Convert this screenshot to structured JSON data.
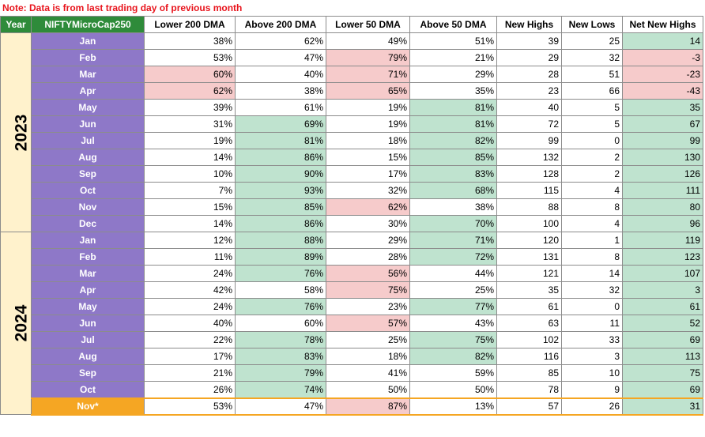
{
  "note": "Note: Data is from last trading day of previous month",
  "headers": [
    "Year",
    "NIFTYMicroCap250",
    "Lower 200 DMA",
    "Above 200 DMA",
    "Lower 50 DMA",
    "Above 50 DMA",
    "New Highs",
    "New Lows",
    "Net New Highs"
  ],
  "colors": {
    "header_green": "#2e8b3a",
    "month_purple": "#8e78c8",
    "year_cream": "#fff2cc",
    "positive_green": "#bfe3cf",
    "negative_red": "#f6cbcb",
    "highlight_orange": "#f5a623",
    "note_red": "#e8141c"
  },
  "years": [
    {
      "label": "2023",
      "rows": [
        {
          "month": "Jan",
          "lower200": "38%",
          "above200": "62%",
          "lower50": "49%",
          "above50": "51%",
          "highs": "39",
          "lows": "25",
          "net": "14",
          "hl": {
            "above200": "",
            "lower50": "",
            "above50": "",
            "net": "g"
          }
        },
        {
          "month": "Feb",
          "lower200": "53%",
          "above200": "47%",
          "lower50": "79%",
          "above50": "21%",
          "highs": "29",
          "lows": "32",
          "net": "-3",
          "hl": {
            "lower50": "r",
            "net": "r"
          }
        },
        {
          "month": "Mar",
          "lower200": "60%",
          "above200": "40%",
          "lower50": "71%",
          "above50": "29%",
          "highs": "28",
          "lows": "51",
          "net": "-23",
          "hl": {
            "lower200": "r",
            "lower50": "r",
            "net": "r"
          }
        },
        {
          "month": "Apr",
          "lower200": "62%",
          "above200": "38%",
          "lower50": "65%",
          "above50": "35%",
          "highs": "23",
          "lows": "66",
          "net": "-43",
          "hl": {
            "lower200": "r",
            "lower50": "r",
            "net": "r"
          }
        },
        {
          "month": "May",
          "lower200": "39%",
          "above200": "61%",
          "lower50": "19%",
          "above50": "81%",
          "highs": "40",
          "lows": "5",
          "net": "35",
          "hl": {
            "above50": "g",
            "net": "g"
          }
        },
        {
          "month": "Jun",
          "lower200": "31%",
          "above200": "69%",
          "lower50": "19%",
          "above50": "81%",
          "highs": "72",
          "lows": "5",
          "net": "67",
          "hl": {
            "above200": "g",
            "above50": "g",
            "net": "g"
          }
        },
        {
          "month": "Jul",
          "lower200": "19%",
          "above200": "81%",
          "lower50": "18%",
          "above50": "82%",
          "highs": "99",
          "lows": "0",
          "net": "99",
          "hl": {
            "above200": "g",
            "above50": "g",
            "net": "g"
          }
        },
        {
          "month": "Aug",
          "lower200": "14%",
          "above200": "86%",
          "lower50": "15%",
          "above50": "85%",
          "highs": "132",
          "lows": "2",
          "net": "130",
          "hl": {
            "above200": "g",
            "above50": "g",
            "net": "g"
          }
        },
        {
          "month": "Sep",
          "lower200": "10%",
          "above200": "90%",
          "lower50": "17%",
          "above50": "83%",
          "highs": "128",
          "lows": "2",
          "net": "126",
          "hl": {
            "above200": "g",
            "above50": "g",
            "net": "g"
          }
        },
        {
          "month": "Oct",
          "lower200": "7%",
          "above200": "93%",
          "lower50": "32%",
          "above50": "68%",
          "highs": "115",
          "lows": "4",
          "net": "111",
          "hl": {
            "above200": "g",
            "above50": "g",
            "net": "g"
          }
        },
        {
          "month": "Nov",
          "lower200": "15%",
          "above200": "85%",
          "lower50": "62%",
          "above50": "38%",
          "highs": "88",
          "lows": "8",
          "net": "80",
          "hl": {
            "above200": "g",
            "lower50": "r",
            "net": "g"
          }
        },
        {
          "month": "Dec",
          "lower200": "14%",
          "above200": "86%",
          "lower50": "30%",
          "above50": "70%",
          "highs": "100",
          "lows": "4",
          "net": "96",
          "hl": {
            "above200": "g",
            "above50": "g",
            "net": "g"
          }
        }
      ]
    },
    {
      "label": "2024",
      "rows": [
        {
          "month": "Jan",
          "lower200": "12%",
          "above200": "88%",
          "lower50": "29%",
          "above50": "71%",
          "highs": "120",
          "lows": "1",
          "net": "119",
          "hl": {
            "above200": "g",
            "above50": "g",
            "net": "g"
          }
        },
        {
          "month": "Feb",
          "lower200": "11%",
          "above200": "89%",
          "lower50": "28%",
          "above50": "72%",
          "highs": "131",
          "lows": "8",
          "net": "123",
          "hl": {
            "above200": "g",
            "above50": "g",
            "net": "g"
          }
        },
        {
          "month": "Mar",
          "lower200": "24%",
          "above200": "76%",
          "lower50": "56%",
          "above50": "44%",
          "highs": "121",
          "lows": "14",
          "net": "107",
          "hl": {
            "above200": "g",
            "lower50": "r",
            "net": "g"
          }
        },
        {
          "month": "Apr",
          "lower200": "42%",
          "above200": "58%",
          "lower50": "75%",
          "above50": "25%",
          "highs": "35",
          "lows": "32",
          "net": "3",
          "hl": {
            "lower50": "r",
            "net": "g"
          }
        },
        {
          "month": "May",
          "lower200": "24%",
          "above200": "76%",
          "lower50": "23%",
          "above50": "77%",
          "highs": "61",
          "lows": "0",
          "net": "61",
          "hl": {
            "above200": "g",
            "above50": "g",
            "net": "g"
          }
        },
        {
          "month": "Jun",
          "lower200": "40%",
          "above200": "60%",
          "lower50": "57%",
          "above50": "43%",
          "highs": "63",
          "lows": "11",
          "net": "52",
          "hl": {
            "lower50": "r",
            "net": "g"
          }
        },
        {
          "month": "Jul",
          "lower200": "22%",
          "above200": "78%",
          "lower50": "25%",
          "above50": "75%",
          "highs": "102",
          "lows": "33",
          "net": "69",
          "hl": {
            "above200": "g",
            "above50": "g",
            "net": "g"
          }
        },
        {
          "month": "Aug",
          "lower200": "17%",
          "above200": "83%",
          "lower50": "18%",
          "above50": "82%",
          "highs": "116",
          "lows": "3",
          "net": "113",
          "hl": {
            "above200": "g",
            "above50": "g",
            "net": "g"
          }
        },
        {
          "month": "Sep",
          "lower200": "21%",
          "above200": "79%",
          "lower50": "41%",
          "above50": "59%",
          "highs": "85",
          "lows": "10",
          "net": "75",
          "hl": {
            "above200": "g",
            "net": "g"
          }
        },
        {
          "month": "Oct",
          "lower200": "26%",
          "above200": "74%",
          "lower50": "50%",
          "above50": "50%",
          "highs": "78",
          "lows": "9",
          "net": "69",
          "hl": {
            "above200": "g",
            "net": "g"
          }
        },
        {
          "month": "Nov*",
          "lower200": "53%",
          "above200": "47%",
          "lower50": "87%",
          "above50": "13%",
          "highs": "57",
          "lows": "26",
          "net": "31",
          "hl": {
            "lower50": "r",
            "net": "g"
          },
          "current": true
        }
      ]
    }
  ]
}
